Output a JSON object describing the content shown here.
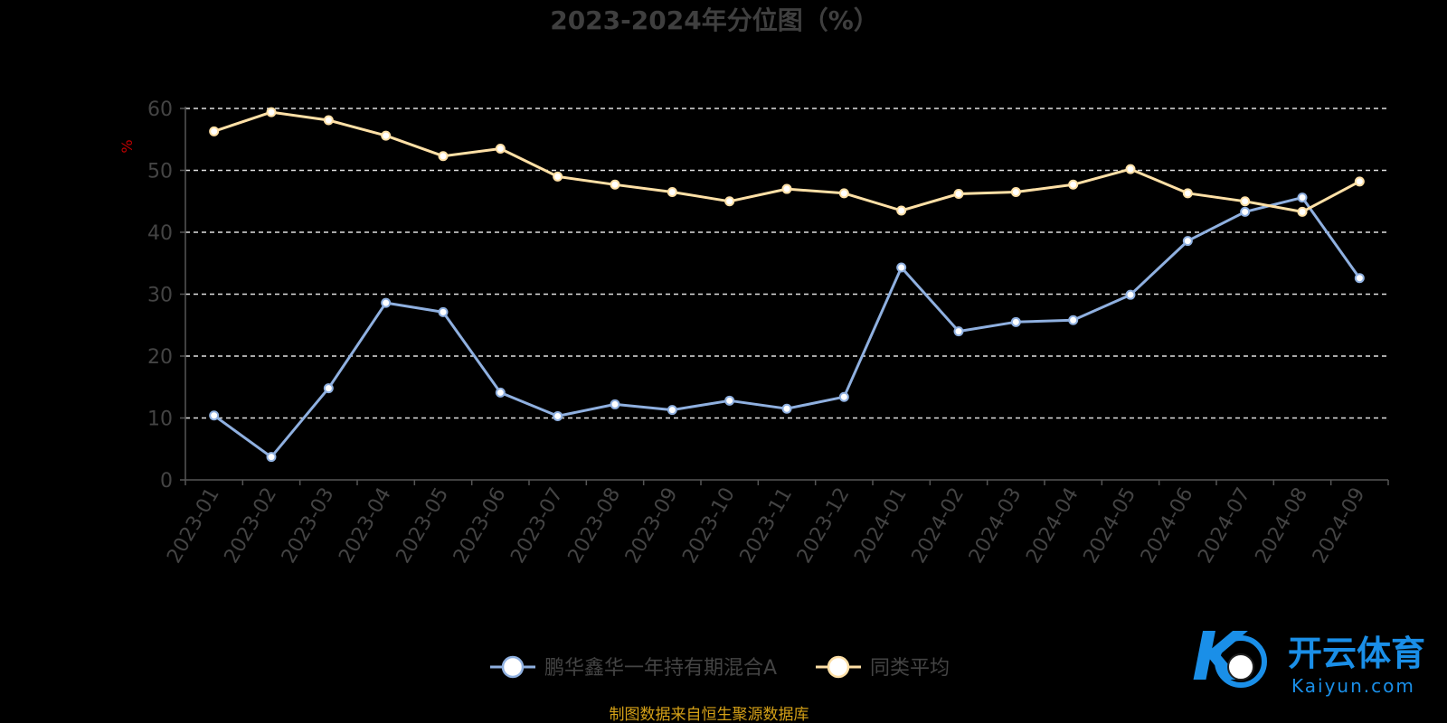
{
  "chart_data": {
    "type": "line",
    "title": "2023-2024年分位图（%）",
    "ylabel": "%",
    "ylim": [
      0,
      60
    ],
    "yticks": [
      0,
      10,
      20,
      30,
      40,
      50,
      60
    ],
    "grid": true,
    "legend_placement": "bottom",
    "categories": [
      "2023-01",
      "2023-02",
      "2023-03",
      "2023-04",
      "2023-05",
      "2023-06",
      "2023-07",
      "2023-08",
      "2023-09",
      "2023-10",
      "2023-11",
      "2023-12",
      "2024-01",
      "2024-02",
      "2024-03",
      "2024-04",
      "2024-05",
      "2024-06",
      "2024-07",
      "2024-08",
      "2024-09"
    ],
    "series": [
      {
        "name": "鹏华鑫华一年持有期混合A",
        "color": "#8fb0e0",
        "values": [
          10.4,
          3.7,
          14.8,
          28.6,
          27.1,
          14.1,
          10.3,
          12.2,
          11.3,
          12.8,
          11.5,
          13.4,
          34.3,
          24.0,
          25.5,
          25.8,
          29.9,
          38.6,
          43.3,
          45.6,
          32.6
        ]
      },
      {
        "name": "同类平均",
        "color": "#ffe0a6",
        "values": [
          56.3,
          59.4,
          58.1,
          55.6,
          52.3,
          53.5,
          49.0,
          47.7,
          46.5,
          45.0,
          47.0,
          46.3,
          43.5,
          46.2,
          46.5,
          47.7,
          50.2,
          46.3,
          45.0,
          43.3,
          48.2
        ]
      }
    ]
  },
  "source_note": "制图数据来自恒生聚源数据库",
  "watermark": {
    "cn": "开云体育",
    "en": "Kaiyun.com"
  }
}
